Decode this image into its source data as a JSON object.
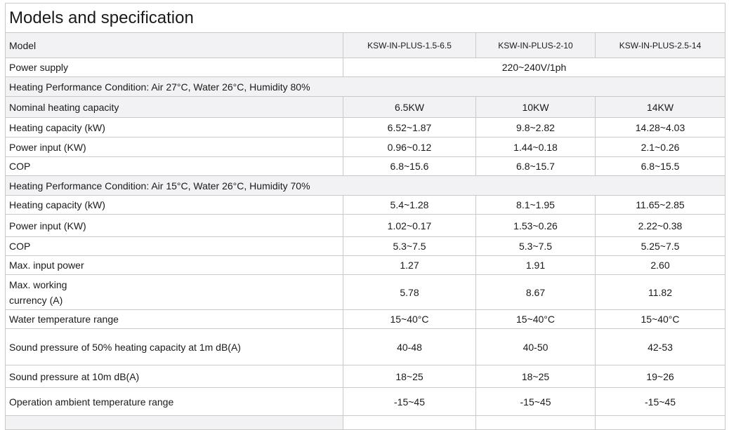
{
  "title": "Models and specification",
  "model_row": {
    "label": "Model",
    "models": [
      "KSW-IN-PLUS-1.5-6.5",
      "KSW-IN-PLUS-2-10",
      "KSW-IN-PLUS-2.5-14"
    ]
  },
  "power_supply": {
    "label": "Power supply",
    "value": "220~240V/1ph"
  },
  "section1": {
    "heading": "Heating Performance Condition: Air 27°C, Water 26°C, Humidity 80%",
    "rows": [
      {
        "label": "Nominal heating capacity",
        "values": [
          "6.5KW",
          "10KW",
          "14KW"
        ]
      },
      {
        "label": "Heating capacity (kW)",
        "values": [
          "6.52~1.87",
          "9.8~2.82",
          "14.28~4.03"
        ]
      },
      {
        "label": "Power input (KW)",
        "values": [
          "0.96~0.12",
          "1.44~0.18",
          "2.1~0.26"
        ]
      },
      {
        "label": "COP",
        "values": [
          "6.8~15.6",
          "6.8~15.7",
          "6.8~15.5"
        ]
      }
    ]
  },
  "section2": {
    "heading": "Heating Performance Condition: Air 15°C, Water 26°C, Humidity 70%",
    "rows": [
      {
        "label": "Heating capacity (kW)",
        "values": [
          "5.4~1.28",
          "8.1~1.95",
          "11.65~2.85"
        ]
      },
      {
        "label": "Power input (KW)",
        "values": [
          "1.02~0.17",
          "1.53~0.26",
          "2.22~0.38"
        ]
      },
      {
        "label": "COP",
        "values": [
          "5.3~7.5",
          "5.3~7.5",
          "5.25~7.5"
        ]
      }
    ]
  },
  "other_rows": [
    {
      "label": "Max. input power",
      "values": [
        "1.27",
        "1.91",
        "2.60"
      ]
    },
    {
      "label_line1": "Max. working",
      "label_line2": "currency (A)",
      "values": [
        "5.78",
        "8.67",
        "11.82"
      ]
    },
    {
      "label": "Water temperature range",
      "values": [
        "15~40°C",
        "15~40°C",
        "15~40°C"
      ]
    },
    {
      "label": "Sound pressure of 50% heating capacity at 1m dB(A)",
      "values": [
        "40-48",
        "40-50",
        "42-53"
      ]
    },
    {
      "label": "Sound pressure at 10m dB(A)",
      "values": [
        "18~25",
        "18~25",
        "19~26"
      ]
    },
    {
      "label": "Operation ambient temperature range",
      "values": [
        "-15~45",
        "-15~45",
        "-15~45"
      ]
    }
  ],
  "colors": {
    "header_row_bg": "#f2f2f4",
    "border": "#c9c9c9",
    "text": "#1a1a1a"
  }
}
